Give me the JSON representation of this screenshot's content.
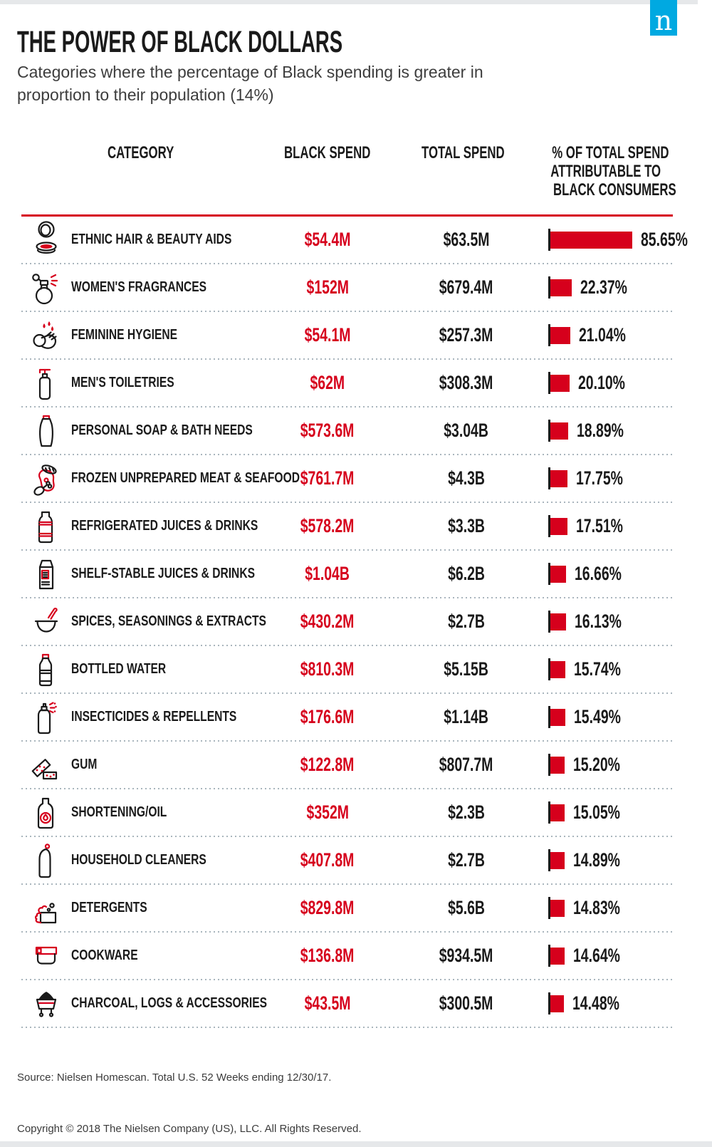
{
  "logo": {
    "letter": "n"
  },
  "colors": {
    "accent_red": "#d6001c",
    "logo_blue": "#00a9e1",
    "ink": "#1a1a1a",
    "separator_gray": "#a9b5bd",
    "band_gray": "#e6e8ea"
  },
  "header": {
    "title": "THE POWER OF BLACK DOLLARS",
    "subtitle": "Categories where the percentage of Black spending is greater in proportion to their population (14%)"
  },
  "table": {
    "columns": [
      "CATEGORY",
      "BLACK SPEND",
      "TOTAL SPEND",
      "% OF TOTAL SPEND ATTRIBUTABLE TO BLACK CONSUMERS"
    ],
    "percent_header_lines": [
      "% OF TOTAL SPEND",
      "ATTRIBUTABLE TO",
      "BLACK CONSUMERS"
    ],
    "rows": [
      {
        "category": "ETHNIC HAIR & BEAUTY AIDS",
        "black_spend": "$54.4M",
        "total_spend": "$63.5M",
        "percent": 85.65,
        "percent_label": "85.65%",
        "icon": "compact-mirror-icon"
      },
      {
        "category": "WOMEN'S FRAGRANCES",
        "black_spend": "$152M",
        "total_spend": "$679.4M",
        "percent": 22.37,
        "percent_label": "22.37%",
        "icon": "perfume-bottle-icon"
      },
      {
        "category": "FEMININE HYGIENE",
        "black_spend": "$54.1M",
        "total_spend": "$257.3M",
        "percent": 21.04,
        "percent_label": "21.04%",
        "icon": "washing-hands-icon"
      },
      {
        "category": "MEN'S TOILETRIES",
        "black_spend": "$62M",
        "total_spend": "$308.3M",
        "percent": 20.1,
        "percent_label": "20.10%",
        "icon": "pump-bottle-icon"
      },
      {
        "category": "PERSONAL SOAP & BATH NEEDS",
        "black_spend": "$573.6M",
        "total_spend": "$3.04B",
        "percent": 18.89,
        "percent_label": "18.89%",
        "icon": "soap-bottle-icon"
      },
      {
        "category": "FROZEN UNPREPARED MEAT & SEAFOOD",
        "black_spend": "$761.7M",
        "total_spend": "$4.3B",
        "percent": 17.75,
        "percent_label": "17.75%",
        "icon": "meat-icon"
      },
      {
        "category": "REFRIGERATED JUICES & DRINKS",
        "black_spend": "$578.2M",
        "total_spend": "$3.3B",
        "percent": 17.51,
        "percent_label": "17.51%",
        "icon": "juice-bottle-icon"
      },
      {
        "category": "SHELF-STABLE JUICES & DRINKS",
        "black_spend": "$1.04B",
        "total_spend": "$6.2B",
        "percent": 16.66,
        "percent_label": "16.66%",
        "icon": "juice-carton-icon"
      },
      {
        "category": "SPICES, SEASONINGS & EXTRACTS",
        "black_spend": "$430.2M",
        "total_spend": "$2.7B",
        "percent": 16.13,
        "percent_label": "16.13%",
        "icon": "mortar-pestle-icon"
      },
      {
        "category": "BOTTLED WATER",
        "black_spend": "$810.3M",
        "total_spend": "$5.15B",
        "percent": 15.74,
        "percent_label": "15.74%",
        "icon": "water-bottle-icon"
      },
      {
        "category": "INSECTICIDES & REPELLENTS",
        "black_spend": "$176.6M",
        "total_spend": "$1.14B",
        "percent": 15.49,
        "percent_label": "15.49%",
        "icon": "spray-can-icon"
      },
      {
        "category": "GUM",
        "black_spend": "$122.8M",
        "total_spend": "$807.7M",
        "percent": 15.2,
        "percent_label": "15.20%",
        "icon": "gum-sticks-icon"
      },
      {
        "category": "SHORTENING/OIL",
        "black_spend": "$352M",
        "total_spend": "$2.3B",
        "percent": 15.05,
        "percent_label": "15.05%",
        "icon": "oil-bottle-icon"
      },
      {
        "category": "HOUSEHOLD CLEANERS",
        "black_spend": "$407.8M",
        "total_spend": "$2.7B",
        "percent": 14.89,
        "percent_label": "14.89%",
        "icon": "cleaner-bottle-icon"
      },
      {
        "category": "DETERGENTS",
        "black_spend": "$829.8M",
        "total_spend": "$5.6B",
        "percent": 14.83,
        "percent_label": "14.83%",
        "icon": "detergent-box-icon"
      },
      {
        "category": "COOKWARE",
        "black_spend": "$136.8M",
        "total_spend": "$934.5M",
        "percent": 14.64,
        "percent_label": "14.64%",
        "icon": "cookware-pan-icon"
      },
      {
        "category": "CHARCOAL, LOGS & ACCESSORIES",
        "black_spend": "$43.5M",
        "total_spend": "$300.5M",
        "percent": 14.48,
        "percent_label": "14.48%",
        "icon": "charcoal-grill-icon"
      }
    ]
  },
  "chart_data": {
    "type": "bar",
    "orientation": "horizontal",
    "title": "THE POWER OF BLACK DOLLARS",
    "subtitle": "Categories where the percentage of Black spending is greater in proportion to their population (14%)",
    "categories": [
      "ETHNIC HAIR & BEAUTY AIDS",
      "WOMEN'S FRAGRANCES",
      "FEMININE HYGIENE",
      "MEN'S TOILETRIES",
      "PERSONAL SOAP & BATH NEEDS",
      "FROZEN UNPREPARED MEAT & SEAFOOD",
      "REFRIGERATED JUICES & DRINKS",
      "SHELF-STABLE JUICES & DRINKS",
      "SPICES, SEASONINGS & EXTRACTS",
      "BOTTLED WATER",
      "INSECTICIDES & REPELLENTS",
      "GUM",
      "SHORTENING/OIL",
      "HOUSEHOLD CLEANERS",
      "DETERGENTS",
      "COOKWARE",
      "CHARCOAL, LOGS & ACCESSORIES"
    ],
    "series": [
      {
        "name": "Black Spend",
        "values_label": [
          "$54.4M",
          "$152M",
          "$54.1M",
          "$62M",
          "$573.6M",
          "$761.7M",
          "$578.2M",
          "$1.04B",
          "$430.2M",
          "$810.3M",
          "$176.6M",
          "$122.8M",
          "$352M",
          "$407.8M",
          "$829.8M",
          "$136.8M",
          "$43.5M"
        ],
        "values_musd": [
          54.4,
          152,
          54.1,
          62,
          573.6,
          761.7,
          578.2,
          1040,
          430.2,
          810.3,
          176.6,
          122.8,
          352,
          407.8,
          829.8,
          136.8,
          43.5
        ]
      },
      {
        "name": "Total Spend",
        "values_label": [
          "$63.5M",
          "$679.4M",
          "$257.3M",
          "$308.3M",
          "$3.04B",
          "$4.3B",
          "$3.3B",
          "$6.2B",
          "$2.7B",
          "$5.15B",
          "$1.14B",
          "$807.7M",
          "$2.3B",
          "$2.7B",
          "$5.6B",
          "$934.5M",
          "$300.5M"
        ],
        "values_musd": [
          63.5,
          679.4,
          257.3,
          308.3,
          3040,
          4300,
          3300,
          6200,
          2700,
          5150,
          1140,
          807.7,
          2300,
          2700,
          5600,
          934.5,
          300.5
        ]
      },
      {
        "name": "% of Total Spend Attributable to Black Consumers",
        "values": [
          85.65,
          22.37,
          21.04,
          20.1,
          18.89,
          17.75,
          17.51,
          16.66,
          16.13,
          15.74,
          15.49,
          15.2,
          15.05,
          14.89,
          14.83,
          14.64,
          14.48
        ]
      }
    ],
    "bar_series_plotted": "% of Total Spend Attributable to Black Consumers",
    "xlim": [
      0,
      100
    ],
    "grid": false,
    "legend": false,
    "bar_color": "#d6001c"
  },
  "footer": {
    "source": "Source: Nielsen Homescan. Total U.S. 52 Weeks ending 12/30/17.",
    "copyright": "Copyright © 2018 The Nielsen Company (US), LLC. All Rights Reserved."
  }
}
